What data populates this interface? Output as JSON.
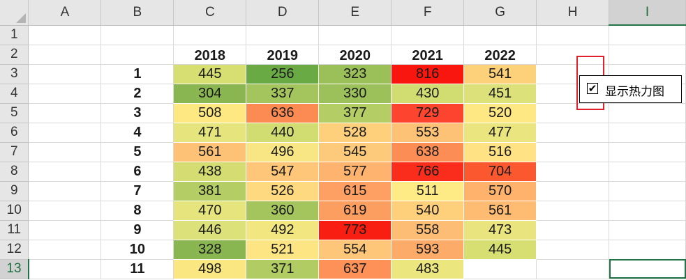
{
  "columns": [
    "A",
    "B",
    "C",
    "D",
    "E",
    "F",
    "G",
    "H",
    "I"
  ],
  "selected_column": "I",
  "rows": [
    1,
    2,
    3,
    4,
    5,
    6,
    7,
    8,
    9,
    10,
    11,
    12,
    13
  ],
  "selected_row": 13,
  "years": [
    "2018",
    "2019",
    "2020",
    "2021",
    "2022"
  ],
  "row_labels": [
    "1",
    "2",
    "3",
    "4",
    "5",
    "6",
    "7",
    "8",
    "9",
    "10",
    "11"
  ],
  "values": [
    [
      445,
      256,
      323,
      816,
      541
    ],
    [
      304,
      337,
      330,
      430,
      451
    ],
    [
      508,
      636,
      377,
      729,
      520
    ],
    [
      471,
      440,
      528,
      553,
      477
    ],
    [
      561,
      496,
      545,
      638,
      516
    ],
    [
      438,
      547,
      577,
      766,
      704
    ],
    [
      381,
      526,
      615,
      511,
      570
    ],
    [
      470,
      360,
      619,
      540,
      561
    ],
    [
      446,
      492,
      773,
      558,
      473
    ],
    [
      328,
      521,
      554,
      593,
      445
    ],
    [
      498,
      371,
      637,
      483,
      null
    ]
  ],
  "heat_colors": [
    [
      "#d7df73",
      "#6aaa45",
      "#9bc05a",
      "#f8160e",
      "#fdd07a"
    ],
    [
      "#8ab652",
      "#a4c45d",
      "#9cc15a",
      "#d2dd71",
      "#dde17a"
    ],
    [
      "#fde882",
      "#fc8a53",
      "#b4cd64",
      "#fc442e",
      "#fee884"
    ],
    [
      "#e6e47c",
      "#d2dd71",
      "#fed07c",
      "#fdc276",
      "#eae57f"
    ],
    [
      "#fdc276",
      "#f7e683",
      "#fdc97a",
      "#fc8d55",
      "#fee283"
    ],
    [
      "#d5dd72",
      "#fdc679",
      "#feb46f",
      "#fa2d1d",
      "#fc582f"
    ],
    [
      "#b4cd64",
      "#fed97f",
      "#fea063",
      "#feeb85",
      "#feb26c"
    ],
    [
      "#e6e47c",
      "#a4c45d",
      "#fd9e61",
      "#fed07c",
      "#febc73"
    ],
    [
      "#dde17a",
      "#f2e680",
      "#f91e12",
      "#febd74",
      "#e9e47d"
    ],
    [
      "#8ab652",
      "#fde583",
      "#fec678",
      "#fcac68",
      "#d7df73"
    ],
    [
      "#fbe781",
      "#b1cc62",
      "#fd9158",
      "#ece67f",
      null
    ]
  ],
  "checkbox": {
    "label": "显示热力图",
    "checked": true,
    "check_glyph": "✔",
    "highlight_color": "#e0202a"
  }
}
